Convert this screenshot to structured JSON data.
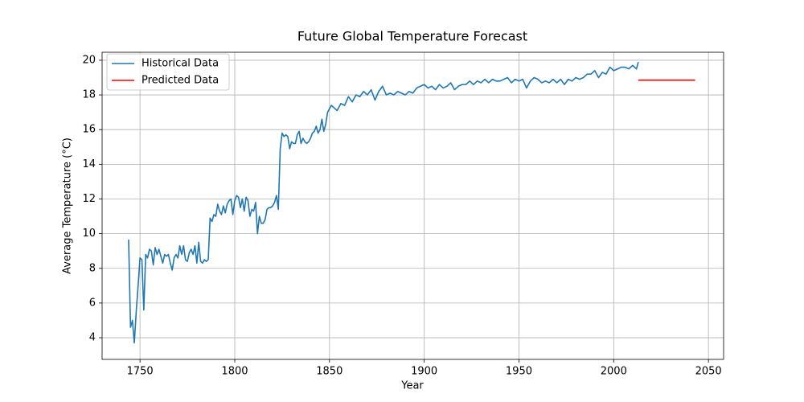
{
  "chart_data": {
    "type": "line",
    "title": "Future Global Temperature Forecast",
    "xlabel": "Year",
    "ylabel": "Average Temperature (°C)",
    "xlim": [
      1730,
      2058
    ],
    "ylim": [
      2.75,
      20.46
    ],
    "xticks": [
      1750,
      1800,
      1850,
      1900,
      1950,
      2000,
      2050
    ],
    "yticks": [
      4,
      6,
      8,
      10,
      12,
      14,
      16,
      18,
      20
    ],
    "grid": true,
    "legend": "upper left",
    "series": [
      {
        "name": "Historical Data",
        "color": "#1f77b4",
        "x": [
          1744,
          1745,
          1746,
          1747,
          1748,
          1749,
          1750,
          1751,
          1752,
          1753,
          1754,
          1755,
          1756,
          1757,
          1758,
          1759,
          1760,
          1761,
          1762,
          1763,
          1764,
          1765,
          1766,
          1767,
          1768,
          1769,
          1770,
          1771,
          1772,
          1773,
          1774,
          1775,
          1776,
          1777,
          1778,
          1779,
          1780,
          1781,
          1782,
          1783,
          1784,
          1785,
          1786,
          1787,
          1788,
          1789,
          1790,
          1791,
          1792,
          1793,
          1794,
          1795,
          1796,
          1797,
          1798,
          1799,
          1800,
          1801,
          1802,
          1803,
          1804,
          1805,
          1806,
          1807,
          1808,
          1809,
          1810,
          1811,
          1812,
          1813,
          1814,
          1815,
          1816,
          1817,
          1818,
          1819,
          1820,
          1821,
          1822,
          1823,
          1824,
          1825,
          1826,
          1827,
          1828,
          1829,
          1830,
          1831,
          1832,
          1833,
          1834,
          1835,
          1836,
          1837,
          1838,
          1839,
          1840,
          1841,
          1842,
          1843,
          1844,
          1845,
          1846,
          1847,
          1848,
          1849,
          1850,
          1851,
          1852,
          1854,
          1856,
          1858,
          1860,
          1862,
          1864,
          1866,
          1868,
          1870,
          1872,
          1874,
          1876,
          1878,
          1880,
          1882,
          1884,
          1886,
          1888,
          1890,
          1892,
          1894,
          1896,
          1898,
          1900,
          1902,
          1904,
          1906,
          1908,
          1910,
          1912,
          1914,
          1916,
          1918,
          1920,
          1922,
          1924,
          1926,
          1928,
          1930,
          1932,
          1934,
          1936,
          1938,
          1940,
          1942,
          1944,
          1946,
          1948,
          1950,
          1952,
          1954,
          1956,
          1958,
          1960,
          1962,
          1964,
          1966,
          1968,
          1970,
          1972,
          1974,
          1976,
          1978,
          1980,
          1982,
          1984,
          1986,
          1988,
          1990,
          1992,
          1994,
          1996,
          1998,
          2000,
          2002,
          2004,
          2006,
          2008,
          2010,
          2012,
          2013
        ],
        "values": [
          9.65,
          4.6,
          5.0,
          3.7,
          5.5,
          7.0,
          8.6,
          8.5,
          5.6,
          8.8,
          8.6,
          9.1,
          9.0,
          8.2,
          9.2,
          8.8,
          9.1,
          8.7,
          8.3,
          8.8,
          8.7,
          8.8,
          8.3,
          7.9,
          8.6,
          8.8,
          8.6,
          9.3,
          8.8,
          9.3,
          8.5,
          8.4,
          8.9,
          9.1,
          8.8,
          9.3,
          8.3,
          9.5,
          8.4,
          8.3,
          8.5,
          8.4,
          8.5,
          10.9,
          10.7,
          11.1,
          11.0,
          11.7,
          11.3,
          11.1,
          11.6,
          11.2,
          11.7,
          11.9,
          12.0,
          11.1,
          11.9,
          12.2,
          12.1,
          11.5,
          12.0,
          11.3,
          12.1,
          11.9,
          11.0,
          11.4,
          11.3,
          11.8,
          10.0,
          11.0,
          10.6,
          10.6,
          10.8,
          11.4,
          11.5,
          11.5,
          11.6,
          11.8,
          12.2,
          11.4,
          14.9,
          15.8,
          15.6,
          15.7,
          15.6,
          14.9,
          15.3,
          15.2,
          15.2,
          15.7,
          15.9,
          15.2,
          15.5,
          15.3,
          15.2,
          15.3,
          15.5,
          15.8,
          15.9,
          16.2,
          15.8,
          16.0,
          16.6,
          15.9,
          16.3,
          17.0,
          17.2,
          17.4,
          17.3,
          17.1,
          17.5,
          17.4,
          17.9,
          17.6,
          18.0,
          17.9,
          18.2,
          18.0,
          18.3,
          17.7,
          18.2,
          18.5,
          18.0,
          18.1,
          18.0,
          18.2,
          18.1,
          18.0,
          18.2,
          18.1,
          18.4,
          18.5,
          18.6,
          18.4,
          18.5,
          18.3,
          18.6,
          18.4,
          18.5,
          18.7,
          18.3,
          18.5,
          18.6,
          18.6,
          18.8,
          18.6,
          18.8,
          18.7,
          18.9,
          18.7,
          18.9,
          18.8,
          18.8,
          18.9,
          19.0,
          18.7,
          18.9,
          18.8,
          18.9,
          18.4,
          18.8,
          19.0,
          18.9,
          18.7,
          18.8,
          18.7,
          18.9,
          18.7,
          18.9,
          18.6,
          18.9,
          18.8,
          19.0,
          18.9,
          19.0,
          19.2,
          19.2,
          19.4,
          19.0,
          19.3,
          19.2,
          19.6,
          19.4,
          19.5,
          19.6,
          19.6,
          19.5,
          19.7,
          19.5,
          19.9
        ]
      },
      {
        "name": "Predicted Data",
        "color": "#ff0000",
        "x": [
          2013,
          2023,
          2033,
          2043
        ],
        "values": [
          18.85,
          18.85,
          18.85,
          18.85
        ]
      }
    ]
  }
}
